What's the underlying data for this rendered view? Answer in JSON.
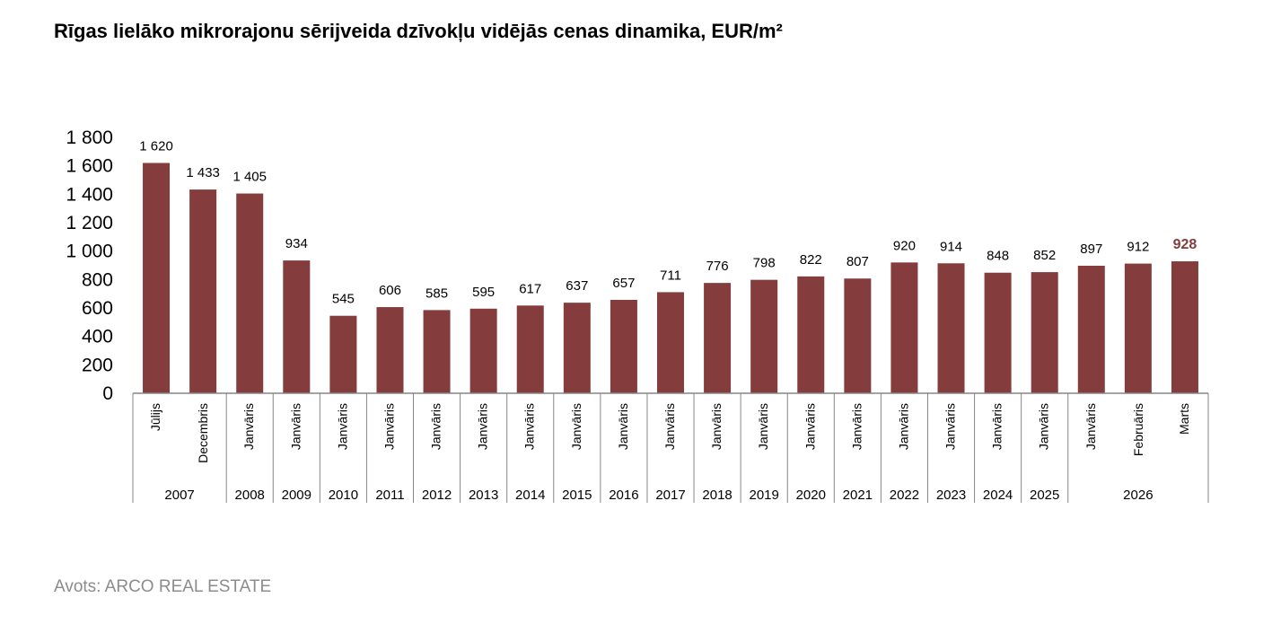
{
  "title": "Rīgas lielāko mikrorajonu sērijveida dzīvokļu vidējās cenas dinamika, EUR/m²",
  "source": "Avots: ARCO REAL ESTATE",
  "colors": {
    "bar": "#843c3c",
    "highlight_label": "#843c3c",
    "axis": "#868686",
    "text": "#000000",
    "source_text": "#8c8c8c"
  },
  "chart_data": {
    "type": "bar",
    "title": "Rīgas lielāko mikrorajonu sērijveida dzīvokļu vidējās cenas dinamika, EUR/m²",
    "xlabel": "",
    "ylabel": "",
    "ylim": [
      0,
      1800
    ],
    "yticks": [
      0,
      200,
      400,
      600,
      800,
      1000,
      1200,
      1400,
      1600,
      1800
    ],
    "ytick_labels": [
      "0",
      "200",
      "400",
      "600",
      "800",
      "1 000",
      "1 200",
      "1 400",
      "1 600",
      "1 800"
    ],
    "grid": false,
    "legend": "none",
    "categories": [
      "Jūlijs",
      "Decembris",
      "Janvāris",
      "Janvāris",
      "Janvāris",
      "Janvāris",
      "Janvāris",
      "Janvāris",
      "Janvāris",
      "Janvāris",
      "Janvāris",
      "Janvāris",
      "Janvāris",
      "Janvāris",
      "Janvāris",
      "Janvāris",
      "Janvāris",
      "Janvāris",
      "Janvāris",
      "Janvāris",
      "Janvāris",
      "Februāris",
      "Marts"
    ],
    "values": [
      1620,
      1433,
      1405,
      934,
      545,
      606,
      585,
      595,
      617,
      637,
      657,
      711,
      776,
      798,
      822,
      807,
      920,
      914,
      848,
      852,
      897,
      912,
      928
    ],
    "value_labels": [
      "1 620",
      "1 433",
      "1 405",
      "934",
      "545",
      "606",
      "585",
      "595",
      "617",
      "637",
      "657",
      "711",
      "776",
      "798",
      "822",
      "807",
      "920",
      "914",
      "848",
      "852",
      "897",
      "912",
      "928"
    ],
    "highlight_index": 22,
    "year_groups": [
      {
        "label": "2007",
        "count": 2
      },
      {
        "label": "2008",
        "count": 1
      },
      {
        "label": "2009",
        "count": 1
      },
      {
        "label": "2010",
        "count": 1
      },
      {
        "label": "2011",
        "count": 1
      },
      {
        "label": "2012",
        "count": 1
      },
      {
        "label": "2013",
        "count": 1
      },
      {
        "label": "2014",
        "count": 1
      },
      {
        "label": "2015",
        "count": 1
      },
      {
        "label": "2016",
        "count": 1
      },
      {
        "label": "2017",
        "count": 1
      },
      {
        "label": "2018",
        "count": 1
      },
      {
        "label": "2019",
        "count": 1
      },
      {
        "label": "2020",
        "count": 1
      },
      {
        "label": "2021",
        "count": 1
      },
      {
        "label": "2022",
        "count": 1
      },
      {
        "label": "2023",
        "count": 1
      },
      {
        "label": "2024",
        "count": 1
      },
      {
        "label": "2025",
        "count": 1
      },
      {
        "label": "2026",
        "count": 3
      }
    ]
  }
}
